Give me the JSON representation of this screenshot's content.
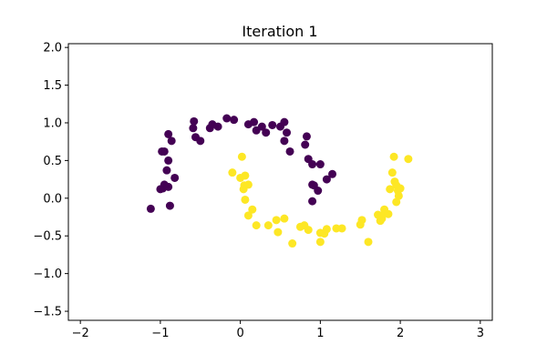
{
  "chart_data": {
    "type": "scatter",
    "title": "Iteration 1",
    "xlabel": "",
    "ylabel": "",
    "xlim": [
      -2.15,
      3.15
    ],
    "ylim": [
      -1.62,
      2.05
    ],
    "xticks": [
      -2,
      -1,
      0,
      1,
      2,
      3
    ],
    "yticks": [
      -1.5,
      -1.0,
      -0.5,
      0.0,
      0.5,
      1.0,
      1.5,
      2.0
    ],
    "xtick_labels": [
      "−2",
      "−1",
      "0",
      "1",
      "2",
      "3"
    ],
    "ytick_labels": [
      "−1.5",
      "−1.0",
      "−0.5",
      "0.0",
      "0.5",
      "1.0",
      "1.5",
      "2.0"
    ],
    "grid": false,
    "colors": {
      "cluster_0": "#440154",
      "cluster_1": "#fde725"
    },
    "series": [
      {
        "color": "#440154",
        "points": [
          [
            -1.12,
            -0.14
          ],
          [
            -0.88,
            -0.1
          ],
          [
            -0.82,
            0.27
          ],
          [
            -0.9,
            0.15
          ],
          [
            -0.95,
            0.18
          ],
          [
            -0.97,
            0.13
          ],
          [
            -1.0,
            0.12
          ],
          [
            -0.92,
            0.37
          ],
          [
            -0.9,
            0.5
          ],
          [
            -0.98,
            0.62
          ],
          [
            -0.95,
            0.62
          ],
          [
            -0.9,
            0.85
          ],
          [
            -0.86,
            0.76
          ],
          [
            -0.59,
            0.93
          ],
          [
            -0.58,
            1.02
          ],
          [
            -0.56,
            0.81
          ],
          [
            -0.5,
            0.76
          ],
          [
            -0.38,
            0.93
          ],
          [
            -0.35,
            0.98
          ],
          [
            -0.28,
            0.95
          ],
          [
            -0.17,
            1.06
          ],
          [
            -0.08,
            1.04
          ],
          [
            0.1,
            0.98
          ],
          [
            0.17,
            1.01
          ],
          [
            0.2,
            0.9
          ],
          [
            0.27,
            0.95
          ],
          [
            0.32,
            0.87
          ],
          [
            0.4,
            0.97
          ],
          [
            0.5,
            0.95
          ],
          [
            0.55,
            1.01
          ],
          [
            0.58,
            0.87
          ],
          [
            0.55,
            0.76
          ],
          [
            0.62,
            0.62
          ],
          [
            0.83,
            0.82
          ],
          [
            0.81,
            0.71
          ],
          [
            0.85,
            0.52
          ],
          [
            0.9,
            0.45
          ],
          [
            0.92,
            0.17
          ],
          [
            0.9,
            0.18
          ],
          [
            0.97,
            0.1
          ],
          [
            1.0,
            0.45
          ],
          [
            1.08,
            0.25
          ],
          [
            1.15,
            0.32
          ],
          [
            0.9,
            -0.04
          ]
        ]
      },
      {
        "color": "#fde725",
        "points": [
          [
            -0.1,
            0.34
          ],
          [
            0.02,
            0.55
          ],
          [
            0.0,
            0.27
          ],
          [
            0.06,
            0.3
          ],
          [
            0.05,
            0.17
          ],
          [
            0.1,
            0.18
          ],
          [
            0.04,
            0.12
          ],
          [
            0.06,
            -0.02
          ],
          [
            0.15,
            -0.15
          ],
          [
            0.1,
            -0.23
          ],
          [
            0.2,
            -0.36
          ],
          [
            0.35,
            -0.36
          ],
          [
            0.45,
            -0.29
          ],
          [
            0.47,
            -0.45
          ],
          [
            0.55,
            -0.27
          ],
          [
            0.65,
            -0.6
          ],
          [
            0.75,
            -0.38
          ],
          [
            0.8,
            -0.36
          ],
          [
            0.85,
            -0.42
          ],
          [
            1.0,
            -0.46
          ],
          [
            1.0,
            -0.58
          ],
          [
            1.05,
            -0.47
          ],
          [
            1.08,
            -0.41
          ],
          [
            1.2,
            -0.4
          ],
          [
            1.27,
            -0.4
          ],
          [
            1.5,
            -0.35
          ],
          [
            1.52,
            -0.29
          ],
          [
            1.6,
            -0.58
          ],
          [
            1.72,
            -0.22
          ],
          [
            1.75,
            -0.3
          ],
          [
            1.77,
            -0.27
          ],
          [
            1.8,
            -0.2
          ],
          [
            1.85,
            -0.21
          ],
          [
            1.8,
            -0.15
          ],
          [
            1.87,
            0.12
          ],
          [
            1.9,
            0.34
          ],
          [
            1.92,
            0.55
          ],
          [
            1.93,
            0.22
          ],
          [
            1.95,
            0.17
          ],
          [
            1.97,
            0.1
          ],
          [
            1.98,
            0.03
          ],
          [
            1.95,
            -0.05
          ],
          [
            2.0,
            0.13
          ],
          [
            2.1,
            0.52
          ]
        ]
      }
    ]
  }
}
